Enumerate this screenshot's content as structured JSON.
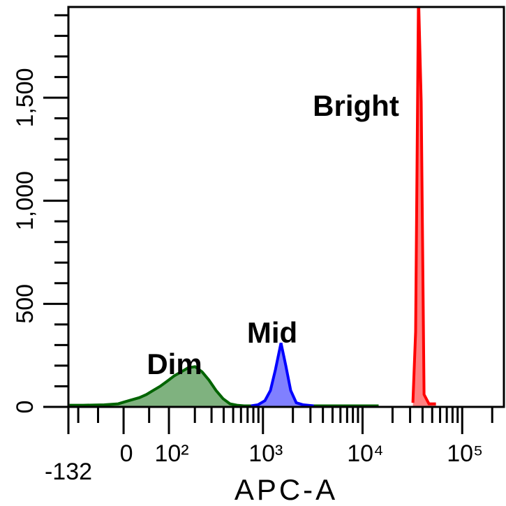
{
  "chart_data": {
    "type": "area",
    "x_label": "APC-A",
    "xscale": "biexponential",
    "xlim": [
      -132,
      262144
    ],
    "xticks": [
      {
        "value": -132,
        "label": "-132"
      },
      0,
      {
        "value": 100,
        "label": "10²"
      },
      {
        "value": 1000,
        "label": "10³"
      },
      {
        "value": 10000,
        "label": "10⁴"
      },
      {
        "value": 100000,
        "label": "10⁵"
      }
    ],
    "xminorticks": [
      -100,
      -50,
      50,
      200,
      300,
      400,
      500,
      600,
      700,
      800,
      900,
      2000,
      3000,
      4000,
      5000,
      6000,
      7000,
      8000,
      9000,
      20000,
      30000,
      40000,
      50000,
      60000,
      70000,
      80000,
      90000,
      200000
    ],
    "ylim": [
      0,
      1940
    ],
    "yticks": [
      0,
      500,
      {
        "value": 1000,
        "label": "1,000"
      },
      {
        "value": 1500,
        "label": "1,500"
      }
    ],
    "yminorticks": [
      100,
      200,
      300,
      400,
      600,
      700,
      800,
      900,
      1100,
      1200,
      1300,
      1400,
      1600,
      1700,
      1800,
      1900
    ],
    "series": [
      {
        "name": "Dim",
        "color": "#006400",
        "fill": "#7fb27f",
        "x": [
          -128,
          -86,
          -37,
          -10,
          3,
          16,
          30,
          44,
          59,
          76,
          95,
          116,
          141,
          169,
          201,
          239,
          282,
          334,
          394,
          464,
          546,
          644,
          14500
        ],
        "values": [
          8,
          8,
          10,
          15,
          25,
          35,
          45,
          60,
          80,
          100,
          125,
          150,
          170,
          190,
          195,
          170,
          130,
          80,
          40,
          15,
          8,
          5,
          5
        ]
      },
      {
        "name": "Mid",
        "color": "#0000ff",
        "fill": "#8080ff",
        "x": [
          758,
          890,
          1046,
          1190,
          1333,
          1517,
          1698,
          1901,
          2163,
          2542,
          3240
        ],
        "values": [
          5,
          10,
          30,
          80,
          180,
          310,
          200,
          80,
          20,
          10,
          5
        ]
      },
      {
        "name": "Bright",
        "color": "#ff0000",
        "fill": "#ff8080",
        "x": [
          32000,
          34100,
          36400,
          38800,
          41400,
          46400,
          54500
        ],
        "values": [
          20,
          365,
          2000,
          1480,
          60,
          15,
          15
        ]
      }
    ]
  }
}
